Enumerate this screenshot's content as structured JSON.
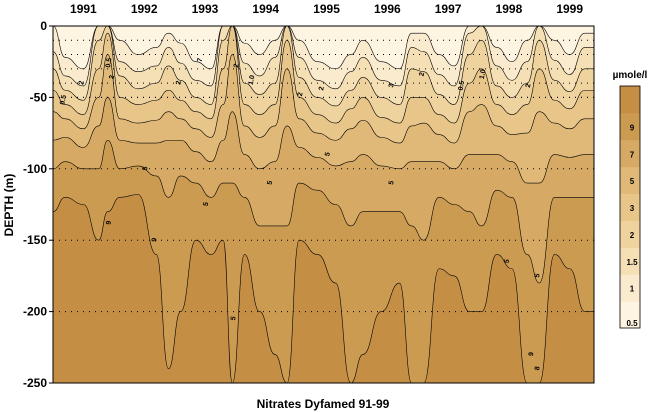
{
  "chart_data": {
    "type": "heatmap",
    "title": "Nitrates Dyfamed 91-99",
    "ylabel": "DEPTH (m)",
    "ylim": [
      -250,
      0
    ],
    "y_ticks": [
      0,
      -50,
      -100,
      -150,
      -200,
      -250
    ],
    "x_years": [
      "1991",
      "1992",
      "1993",
      "1994",
      "1995",
      "1996",
      "1997",
      "1998",
      "1999"
    ],
    "grid": "dotted",
    "legend": {
      "title": "µmole/l",
      "placement": "right",
      "levels": [
        "0.5",
        "1",
        "1.5",
        "2",
        "3",
        "5",
        "7",
        "9"
      ],
      "colors": [
        "#fdf4e2",
        "#faebce",
        "#f5e0b6",
        "#efd39e",
        "#e8c68a",
        "#e0b978",
        "#d6a964",
        "#cc9b52",
        "#c48e45"
      ]
    },
    "contour_labels": [
      "0.5",
      "1",
      "1.5",
      "2",
      "3",
      "5",
      "7",
      "9"
    ],
    "profiles": [
      {
        "year": 1991.0,
        "d": [
          0,
          18,
          30,
          45,
          60,
          80,
          100,
          130
        ]
      },
      {
        "year": 1991.2,
        "d": [
          22,
          35,
          45,
          55,
          65,
          78,
          95,
          120
        ]
      },
      {
        "year": 1991.5,
        "d": [
          30,
          42,
          52,
          62,
          72,
          85,
          100,
          125
        ]
      },
      {
        "year": 1991.75,
        "d": [
          0,
          0,
          10,
          30,
          50,
          70,
          100,
          150
        ]
      },
      {
        "year": 1991.9,
        "d": [
          0,
          0,
          0,
          5,
          20,
          50,
          80,
          130
        ]
      },
      {
        "year": 1992.1,
        "d": [
          10,
          25,
          35,
          50,
          65,
          80,
          100,
          120
        ]
      },
      {
        "year": 1992.4,
        "d": [
          20,
          32,
          44,
          55,
          68,
          82,
          98,
          118
        ]
      },
      {
        "year": 1992.7,
        "d": [
          15,
          28,
          40,
          52,
          66,
          82,
          105,
          160
        ]
      },
      {
        "year": 1992.9,
        "d": [
          5,
          15,
          28,
          45,
          60,
          80,
          120,
          240
        ]
      },
      {
        "year": 1993.1,
        "d": [
          12,
          26,
          38,
          52,
          65,
          80,
          105,
          200
        ]
      },
      {
        "year": 1993.35,
        "d": [
          25,
          38,
          50,
          60,
          72,
          88,
          110,
          150
        ]
      },
      {
        "year": 1993.6,
        "d": [
          30,
          42,
          55,
          65,
          78,
          95,
          120,
          160
        ]
      },
      {
        "year": 1993.8,
        "d": [
          0,
          0,
          10,
          30,
          55,
          80,
          110,
          150
        ]
      },
      {
        "year": 1993.95,
        "d": [
          0,
          0,
          0,
          0,
          20,
          60,
          110,
          250
        ]
      },
      {
        "year": 1994.15,
        "d": [
          12,
          26,
          40,
          55,
          70,
          90,
          120,
          160
        ]
      },
      {
        "year": 1994.4,
        "d": [
          20,
          35,
          48,
          62,
          78,
          100,
          140,
          200
        ]
      },
      {
        "year": 1994.65,
        "d": [
          10,
          22,
          40,
          55,
          70,
          95,
          140,
          230
        ]
      },
      {
        "year": 1994.85,
        "d": [
          0,
          0,
          0,
          10,
          30,
          70,
          140,
          250
        ]
      },
      {
        "year": 1995.05,
        "d": [
          10,
          22,
          36,
          50,
          65,
          85,
          110,
          150
        ]
      },
      {
        "year": 1995.35,
        "d": [
          25,
          38,
          50,
          62,
          75,
          92,
          115,
          160
        ]
      },
      {
        "year": 1995.65,
        "d": [
          30,
          44,
          56,
          68,
          80,
          98,
          125,
          180
        ]
      },
      {
        "year": 1995.9,
        "d": [
          20,
          32,
          45,
          58,
          72,
          95,
          140,
          250
        ]
      },
      {
        "year": 1996.1,
        "d": [
          10,
          22,
          36,
          50,
          66,
          90,
          130,
          230
        ]
      },
      {
        "year": 1996.4,
        "d": [
          25,
          38,
          50,
          64,
          78,
          98,
          130,
          200
        ]
      },
      {
        "year": 1996.7,
        "d": [
          30,
          42,
          55,
          68,
          82,
          100,
          130,
          180
        ]
      },
      {
        "year": 1996.9,
        "d": [
          5,
          15,
          30,
          50,
          70,
          95,
          140,
          250
        ]
      },
      {
        "year": 1997.1,
        "d": [
          5,
          18,
          32,
          50,
          68,
          95,
          150,
          250
        ]
      },
      {
        "year": 1997.35,
        "d": [
          20,
          34,
          48,
          62,
          76,
          95,
          120,
          170
        ]
      },
      {
        "year": 1997.6,
        "d": [
          28,
          42,
          55,
          68,
          82,
          100,
          125,
          175
        ]
      },
      {
        "year": 1997.85,
        "d": [
          0,
          5,
          20,
          40,
          60,
          90,
          130,
          200
        ]
      },
      {
        "year": 1998.05,
        "d": [
          0,
          0,
          10,
          30,
          55,
          90,
          140,
          200
        ]
      },
      {
        "year": 1998.3,
        "d": [
          15,
          28,
          42,
          55,
          70,
          90,
          115,
          160
        ]
      },
      {
        "year": 1998.55,
        "d": [
          25,
          38,
          50,
          62,
          76,
          95,
          120,
          170
        ]
      },
      {
        "year": 1998.8,
        "d": [
          10,
          25,
          40,
          55,
          75,
          110,
          160,
          250
        ]
      },
      {
        "year": 1999.0,
        "d": [
          0,
          0,
          10,
          30,
          60,
          110,
          180,
          250
        ]
      },
      {
        "year": 1999.25,
        "d": [
          10,
          24,
          38,
          52,
          68,
          90,
          120,
          160
        ]
      },
      {
        "year": 1999.5,
        "d": [
          20,
          34,
          46,
          58,
          72,
          92,
          120,
          170
        ]
      },
      {
        "year": 1999.75,
        "d": [
          5,
          15,
          30,
          45,
          65,
          90,
          120,
          200
        ]
      }
    ],
    "labels_on_plot": [
      {
        "t": "2",
        "year": 1991.5,
        "depth": 40
      },
      {
        "t": "0.5",
        "year": 1991.2,
        "depth": 52
      },
      {
        "t": "2",
        "year": 1992.0,
        "depth": 36
      },
      {
        "t": "0.5",
        "year": 1991.95,
        "depth": 26
      },
      {
        "t": "7",
        "year": 1993.45,
        "depth": 24
      },
      {
        "t": "2",
        "year": 1993.1,
        "depth": 40
      },
      {
        "t": "2",
        "year": 1994.05,
        "depth": 28
      },
      {
        "t": "1.0",
        "year": 1994.3,
        "depth": 38
      },
      {
        "t": "2",
        "year": 1995.1,
        "depth": 48
      },
      {
        "t": "2",
        "year": 1995.45,
        "depth": 44
      },
      {
        "t": "3",
        "year": 1996.6,
        "depth": 42
      },
      {
        "t": "2",
        "year": 1997.1,
        "depth": 34
      },
      {
        "t": "0.5",
        "year": 1997.75,
        "depth": 42
      },
      {
        "t": "1.0",
        "year": 1998.1,
        "depth": 34
      },
      {
        "t": "2",
        "year": 1998.85,
        "depth": 42
      },
      {
        "t": "5",
        "year": 1992.55,
        "depth": 100
      },
      {
        "t": "5",
        "year": 1993.55,
        "depth": 125
      },
      {
        "t": "5",
        "year": 1994.6,
        "depth": 110
      },
      {
        "t": "5",
        "year": 1995.55,
        "depth": 90
      },
      {
        "t": "5",
        "year": 1996.6,
        "depth": 110
      },
      {
        "t": "5",
        "year": 1998.5,
        "depth": 165
      },
      {
        "t": "5",
        "year": 1999.0,
        "depth": 175
      },
      {
        "t": "9",
        "year": 1992.7,
        "depth": 150
      },
      {
        "t": "9",
        "year": 1998.9,
        "depth": 230
      },
      {
        "t": "8",
        "year": 1999.0,
        "depth": 240
      },
      {
        "t": "9",
        "year": 1991.95,
        "depth": 138
      },
      {
        "t": "5",
        "year": 1994.0,
        "depth": 205
      }
    ]
  }
}
